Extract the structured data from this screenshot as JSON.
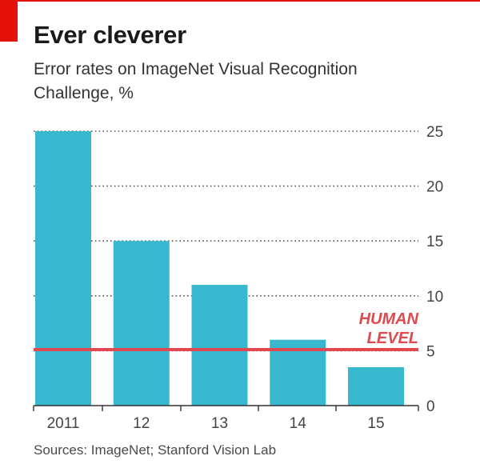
{
  "header": {
    "title": "Ever cleverer",
    "subtitle": "Error rates on ImageNet Visual Recognition Challenge, %"
  },
  "footer": {
    "source": "Sources: ImageNet; Stanford Vision Lab"
  },
  "colors": {
    "bar": "#38b8ce",
    "human_line": "#e0494f",
    "human_text": "#e0494f",
    "grid": "#555555",
    "accent": "#e3120b"
  },
  "chart_data": {
    "type": "bar",
    "title": "Ever cleverer",
    "subtitle": "Error rates on ImageNet Visual Recognition Challenge, %",
    "categories": [
      "2011",
      "12",
      "13",
      "14",
      "15"
    ],
    "values": [
      25.0,
      15.0,
      11.0,
      6.0,
      3.5
    ],
    "ylim": [
      0,
      25
    ],
    "yticks": [
      0,
      5,
      10,
      15,
      20,
      25
    ],
    "y_axis_side": "right",
    "grid": true,
    "reference_line": {
      "value": 5.1,
      "label_lines": [
        "HUMAN",
        "LEVEL"
      ]
    },
    "source": "Sources: ImageNet; Stanford Vision Lab"
  }
}
